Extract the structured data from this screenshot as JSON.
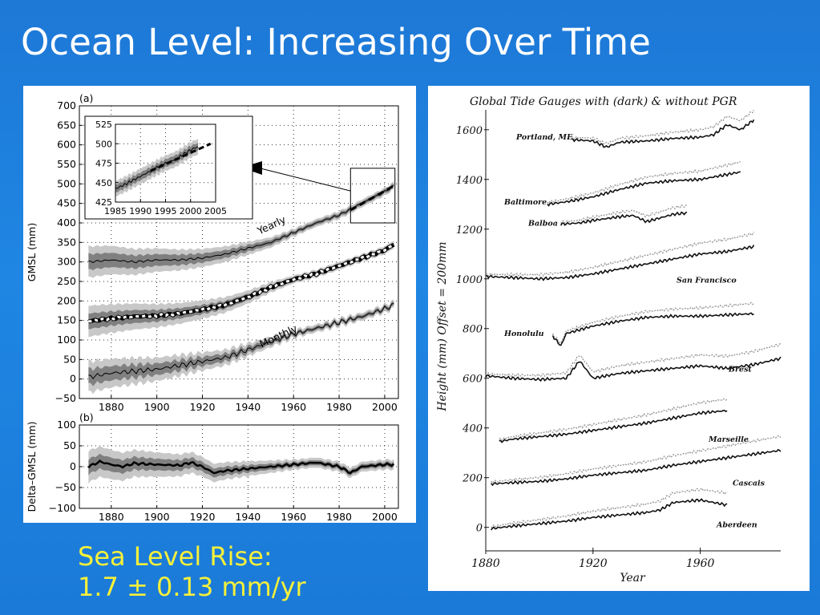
{
  "slide_title": "Ocean Level: Increasing Over Time",
  "caption": {
    "line1": "Sea Level Rise:",
    "line2": "1.7 ± 0.13 mm/yr"
  },
  "colors": {
    "slide_background": "#1f82df",
    "title": "#ffffff",
    "caption": "#f6f03a"
  },
  "chart_data": [
    {
      "type": "line",
      "panel": "(a)",
      "ylabel": "GMSL (mm)",
      "xlim": [
        1866,
        2006
      ],
      "ylim": [
        -50,
        700
      ],
      "x_ticks": [
        1880,
        1900,
        1920,
        1940,
        1960,
        1980,
        2000
      ],
      "y_ticks": [
        -50,
        0,
        50,
        100,
        150,
        200,
        250,
        300,
        350,
        400,
        450,
        500,
        550,
        600,
        650,
        700
      ],
      "grid": true,
      "series": [
        {
          "name": "Yearly",
          "x": [
            1870,
            1880,
            1890,
            1900,
            1910,
            1920,
            1930,
            1940,
            1950,
            1960,
            1970,
            1980,
            1990,
            2000,
            2004
          ],
          "y": [
            300,
            305,
            300,
            305,
            305,
            310,
            320,
            335,
            350,
            375,
            400,
            420,
            450,
            480,
            495
          ]
        },
        {
          "x": [
            1870,
            1880,
            1890,
            1900,
            1910,
            1920,
            1930,
            1940,
            1950,
            1960,
            1970,
            1980,
            1990,
            2000,
            2004
          ],
          "y": [
            148,
            155,
            160,
            162,
            168,
            178,
            190,
            210,
            235,
            255,
            270,
            290,
            310,
            330,
            345
          ]
        },
        {
          "name": "Monthly",
          "x": [
            1870,
            1880,
            1890,
            1900,
            1910,
            1920,
            1930,
            1940,
            1950,
            1960,
            1970,
            1980,
            1990,
            2000,
            2004
          ],
          "y": [
            5,
            15,
            20,
            25,
            35,
            45,
            55,
            75,
            95,
            115,
            130,
            145,
            160,
            180,
            190
          ]
        }
      ],
      "inset": {
        "xlim": [
          1985,
          2005
        ],
        "ylim": [
          425,
          525
        ],
        "x_ticks": [
          1985,
          1990,
          1995,
          2000,
          2005
        ],
        "y_ticks": [
          425,
          450,
          475,
          500,
          525
        ],
        "x": [
          1985,
          1987,
          1990,
          1992,
          1995,
          1997,
          2000,
          2001,
          2004
        ],
        "y": [
          442,
          448,
          458,
          465,
          475,
          480,
          492,
          495,
          500
        ]
      }
    },
    {
      "type": "line",
      "panel": "(b)",
      "ylabel": "Delta–GMSL (mm)",
      "xlim": [
        1866,
        2006
      ],
      "ylim": [
        -100,
        100
      ],
      "x_ticks": [
        1880,
        1900,
        1920,
        1940,
        1960,
        1980,
        2000
      ],
      "y_ticks": [
        -100,
        -50,
        0,
        50,
        100
      ],
      "grid": true,
      "series": [
        {
          "x": [
            1870,
            1875,
            1880,
            1885,
            1890,
            1900,
            1910,
            1915,
            1920,
            1925,
            1930,
            1940,
            1950,
            1960,
            1970,
            1980,
            1985,
            1990,
            2000,
            2004
          ],
          "y": [
            0,
            12,
            5,
            0,
            8,
            5,
            3,
            10,
            0,
            -15,
            -10,
            -5,
            0,
            5,
            10,
            0,
            -15,
            0,
            5,
            5
          ]
        }
      ]
    },
    {
      "type": "line",
      "title": "Global Tide Gauges with (dark) & without PGR",
      "xlabel": "Year",
      "ylabel": "Height (mm) Offset = 200mm",
      "xlim": [
        1880,
        1990
      ],
      "ylim": [
        -30,
        1680
      ],
      "x_ticks": [
        1880,
        1920,
        1960
      ],
      "y_ticks": [
        0,
        200,
        400,
        600,
        800,
        1000,
        1200,
        1400,
        1600
      ],
      "series": [
        {
          "name": "Portland, ME",
          "x": [
            1912,
            1920,
            1925,
            1930,
            1940,
            1950,
            1960,
            1965,
            1970,
            1975,
            1980
          ],
          "y": [
            1560,
            1555,
            1530,
            1550,
            1555,
            1565,
            1570,
            1580,
            1620,
            1600,
            1640
          ]
        },
        {
          "name": "Baltimore",
          "x": [
            1903,
            1910,
            1920,
            1930,
            1940,
            1950,
            1960,
            1970,
            1975
          ],
          "y": [
            1300,
            1310,
            1330,
            1360,
            1385,
            1395,
            1400,
            1420,
            1430
          ]
        },
        {
          "name": "Balboa",
          "x": [
            1908,
            1915,
            1920,
            1930,
            1935,
            1940,
            1950,
            1955
          ],
          "y": [
            1220,
            1225,
            1235,
            1250,
            1255,
            1230,
            1260,
            1265
          ]
        },
        {
          "name": "San Francisco",
          "x": [
            1880,
            1890,
            1900,
            1910,
            1920,
            1930,
            1940,
            1950,
            1960,
            1970,
            1980
          ],
          "y": [
            1010,
            1005,
            1000,
            1005,
            1020,
            1040,
            1060,
            1080,
            1100,
            1110,
            1130
          ]
        },
        {
          "name": "Honolulu",
          "x": [
            1905,
            1908,
            1910,
            1920,
            1930,
            1940,
            1950,
            1960,
            1970,
            1980
          ],
          "y": [
            770,
            730,
            780,
            810,
            830,
            845,
            850,
            850,
            855,
            860
          ]
        },
        {
          "name": "Brest",
          "x": [
            1880,
            1890,
            1900,
            1910,
            1915,
            1920,
            1930,
            1940,
            1950,
            1960,
            1970,
            1980,
            1990
          ],
          "y": [
            610,
            600,
            595,
            600,
            670,
            600,
            620,
            630,
            640,
            650,
            640,
            655,
            680
          ]
        },
        {
          "name": "Marseille",
          "x": [
            1885,
            1890,
            1900,
            1910,
            1920,
            1930,
            1940,
            1950,
            1960,
            1970
          ],
          "y": [
            345,
            355,
            365,
            375,
            390,
            405,
            420,
            440,
            460,
            470
          ]
        },
        {
          "name": "Cascais",
          "x": [
            1882,
            1890,
            1900,
            1910,
            1920,
            1930,
            1940,
            1950,
            1960,
            1970,
            1980,
            1990
          ],
          "y": [
            175,
            180,
            185,
            195,
            210,
            220,
            230,
            250,
            265,
            280,
            295,
            310
          ]
        },
        {
          "name": "Aberdeen",
          "x": [
            1882,
            1890,
            1900,
            1910,
            1920,
            1930,
            1940,
            1945,
            1950,
            1960,
            1970
          ],
          "y": [
            -5,
            5,
            15,
            25,
            40,
            50,
            60,
            70,
            100,
            110,
            90
          ]
        }
      ]
    }
  ]
}
